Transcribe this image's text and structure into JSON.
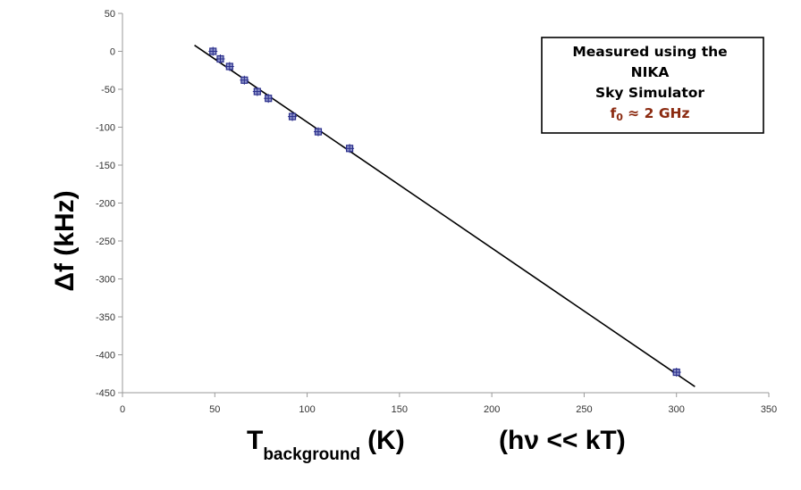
{
  "chart_data": {
    "type": "scatter",
    "title": "",
    "ylabel": "Δf (kHz)",
    "xlabel_main": "T",
    "xlabel_sub": "background",
    "xlabel_unit": "(K)",
    "xlabel_note": "(hν << kT)",
    "xlim": [
      0,
      350
    ],
    "ylim": [
      -450,
      50
    ],
    "xticks": [
      0,
      50,
      100,
      150,
      200,
      250,
      300,
      350
    ],
    "yticks": [
      50,
      0,
      -50,
      -100,
      -150,
      -200,
      -250,
      -300,
      -350,
      -400,
      -450
    ],
    "grid": false,
    "points": [
      {
        "x": 49,
        "y": 0
      },
      {
        "x": 53,
        "y": -10
      },
      {
        "x": 58,
        "y": -20
      },
      {
        "x": 66,
        "y": -38
      },
      {
        "x": 73,
        "y": -53
      },
      {
        "x": 79,
        "y": -62
      },
      {
        "x": 92,
        "y": -86
      },
      {
        "x": 106,
        "y": -106
      },
      {
        "x": 123,
        "y": -128
      },
      {
        "x": 300,
        "y": -423
      }
    ],
    "fit_line": {
      "x": [
        39,
        310
      ],
      "y": [
        8,
        -442
      ]
    },
    "legend": {
      "placement": "top-right",
      "lines": [
        "Measured using the",
        "NIKA",
        "Sky Simulator"
      ],
      "freq_symbol": "f",
      "freq_sub": "0",
      "freq_value": " ≈ 2 GHz"
    },
    "colors": {
      "axis": "#9a9a9a",
      "line": "#000000",
      "marker": "#2b2f8c",
      "legend_red": "#8b2a10"
    }
  }
}
